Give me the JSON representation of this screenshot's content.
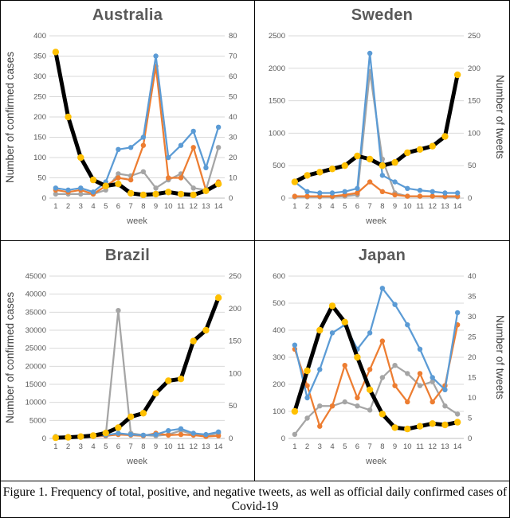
{
  "figure": {
    "caption_line1": "Figure 1. Frequency of total, positive, and negative tweets, as well as official daily confirmed cases of",
    "caption_line2": "Covid-19"
  },
  "colors": {
    "total_tweets": "#5B9BD5",
    "positive_tweets": "#ED7D31",
    "negative_tweets": "#A5A5A5",
    "confirmed_cases_line": "#000000",
    "confirmed_cases_marker": "#FFC000",
    "gridline": "#D9D9D9"
  },
  "chart_data": [
    {
      "type": "line",
      "title": "Australia",
      "xlabel": "week",
      "categories": [
        1,
        2,
        3,
        4,
        5,
        6,
        7,
        8,
        9,
        10,
        11,
        12,
        13,
        14
      ],
      "left_axis": {
        "label": "Number of confirmed cases",
        "min": 0,
        "max": 400,
        "step": 50
      },
      "right_axis": {
        "min": 0,
        "max": 80,
        "step": 10
      },
      "series": [
        {
          "name": "negative tweets",
          "axis": "right",
          "color": "#A5A5A5",
          "values": [
            2,
            2,
            2,
            2,
            4,
            12,
            11,
            13,
            5,
            9,
            12,
            5,
            4,
            25
          ]
        },
        {
          "name": "positive tweets",
          "axis": "right",
          "color": "#ED7D31",
          "values": [
            4,
            3,
            4,
            2,
            6,
            10,
            9,
            26,
            65,
            10,
            10,
            25,
            4,
            8
          ]
        },
        {
          "name": "total tweets",
          "axis": "right",
          "color": "#5B9BD5",
          "values": [
            5,
            4,
            5,
            3,
            8,
            24,
            25,
            30,
            70,
            20,
            26,
            33,
            15,
            35
          ]
        },
        {
          "name": "confirmed cases",
          "axis": "left",
          "color": "#000000",
          "marker_color": "#FFC000",
          "line_width": 5,
          "marker_size": 4.2,
          "values": [
            360,
            200,
            100,
            45,
            30,
            35,
            12,
            8,
            10,
            15,
            10,
            8,
            18,
            35
          ]
        }
      ]
    },
    {
      "type": "line",
      "title": "Sweden",
      "xlabel": "week",
      "categories": [
        1,
        2,
        3,
        4,
        5,
        6,
        7,
        8,
        9,
        10,
        11,
        12,
        13,
        14
      ],
      "left_axis": {
        "min": 0,
        "max": 2500,
        "step": 500
      },
      "right_axis": {
        "label": "Number of tweets",
        "min": 0,
        "max": 250,
        "step": 50
      },
      "series": [
        {
          "name": "negative tweets",
          "axis": "right",
          "color": "#A5A5A5",
          "values": [
            2,
            2,
            2,
            2,
            3,
            5,
            195,
            60,
            8,
            3,
            3,
            3,
            2,
            2
          ]
        },
        {
          "name": "positive tweets",
          "axis": "right",
          "color": "#ED7D31",
          "values": [
            3,
            3,
            3,
            3,
            5,
            8,
            25,
            10,
            5,
            3,
            3,
            3,
            3,
            3
          ]
        },
        {
          "name": "total tweets",
          "axis": "right",
          "color": "#5B9BD5",
          "values": [
            25,
            10,
            8,
            8,
            10,
            15,
            223,
            35,
            25,
            15,
            12,
            10,
            8,
            8
          ]
        },
        {
          "name": "confirmed cases",
          "axis": "left",
          "color": "#000000",
          "marker_color": "#FFC000",
          "line_width": 5,
          "marker_size": 4.2,
          "values": [
            250,
            350,
            400,
            450,
            500,
            650,
            600,
            500,
            550,
            700,
            750,
            800,
            950,
            1900
          ]
        }
      ]
    },
    {
      "type": "line",
      "title": "Brazil",
      "xlabel": "week",
      "categories": [
        1,
        2,
        3,
        4,
        5,
        6,
        7,
        8,
        9,
        10,
        11,
        12,
        13,
        14
      ],
      "left_axis": {
        "label": "Number of confirmed cases",
        "min": 0,
        "max": 45000,
        "step": 5000
      },
      "right_axis": {
        "min": 0,
        "max": 250,
        "step": 50
      },
      "series": [
        {
          "name": "negative tweets",
          "axis": "right",
          "color": "#A5A5A5",
          "values": [
            2,
            2,
            2,
            3,
            5,
            197,
            8,
            5,
            4,
            6,
            12,
            6,
            4,
            8
          ]
        },
        {
          "name": "positive tweets",
          "axis": "right",
          "color": "#ED7D31",
          "values": [
            2,
            2,
            2,
            3,
            4,
            6,
            5,
            4,
            8,
            5,
            6,
            5,
            3,
            4
          ]
        },
        {
          "name": "total tweets",
          "axis": "right",
          "color": "#5B9BD5",
          "values": [
            3,
            3,
            3,
            4,
            5,
            8,
            6,
            5,
            6,
            12,
            15,
            8,
            6,
            10
          ]
        },
        {
          "name": "confirmed cases",
          "axis": "left",
          "color": "#000000",
          "marker_color": "#FFC000",
          "line_width": 5,
          "marker_size": 4.2,
          "values": [
            200,
            300,
            500,
            800,
            1500,
            3000,
            6000,
            7000,
            12500,
            16000,
            16500,
            27000,
            30000,
            39000
          ]
        }
      ]
    },
    {
      "type": "line",
      "title": "Japan",
      "xlabel": "week",
      "categories": [
        1,
        2,
        3,
        4,
        5,
        6,
        7,
        8,
        9,
        10,
        11,
        12,
        13,
        14
      ],
      "left_axis": {
        "min": 0,
        "max": 600,
        "step": 100
      },
      "right_axis": {
        "label": "Number of tweets",
        "min": 0,
        "max": 40,
        "step": 5
      },
      "series": [
        {
          "name": "negative tweets",
          "axis": "right",
          "color": "#A5A5A5",
          "values": [
            1,
            5,
            8,
            8,
            9,
            8,
            7,
            15,
            18,
            16,
            13,
            14,
            8,
            6
          ]
        },
        {
          "name": "positive tweets",
          "axis": "right",
          "color": "#ED7D31",
          "values": [
            22,
            13,
            3,
            8,
            18,
            10,
            17,
            24,
            13,
            9,
            16,
            9,
            13,
            28
          ]
        },
        {
          "name": "total tweets",
          "axis": "right",
          "color": "#5B9BD5",
          "values": [
            23,
            10,
            17,
            26,
            28,
            22,
            26,
            37,
            33,
            28,
            22,
            15,
            12,
            31
          ]
        },
        {
          "name": "confirmed cases",
          "axis": "left",
          "color": "#000000",
          "marker_color": "#FFC000",
          "line_width": 5,
          "marker_size": 4.2,
          "values": [
            100,
            250,
            400,
            490,
            430,
            300,
            180,
            90,
            40,
            35,
            45,
            55,
            50,
            60
          ]
        }
      ]
    }
  ]
}
